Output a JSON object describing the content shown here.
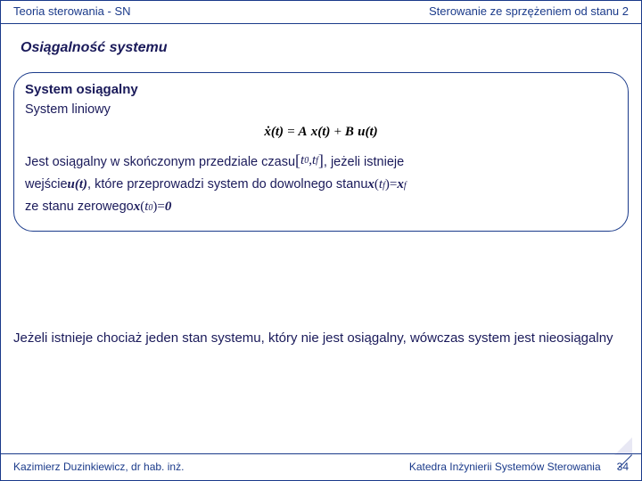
{
  "header": {
    "left": "Teoria sterowania - SN",
    "right": "Sterowanie ze sprzężeniem od stanu 2"
  },
  "title": "Osiągalność systemu",
  "box": {
    "heading": "System osiągalny",
    "sub": "System liniowy",
    "eq_lhs": "ẋ(t)",
    "eq_eq": " = ",
    "eq_A": "A",
    "eq_xt": "x(t)",
    "eq_plus": " + ",
    "eq_B": "B",
    "eq_ut": "u(t)",
    "p1_a": "Jest osiągalny w skończonym przedziale czasu ",
    "p1_int_l": "[",
    "p1_t0": "t",
    "p1_t0s": "0",
    "p1_comma": ", ",
    "p1_tf": "t",
    "p1_tfs": "f",
    "p1_int_r": "]",
    "p1_b": ", jeżeli istnieje",
    "p2_a": "wejście ",
    "p2_u": "u(t)",
    "p2_b": ", które przeprowadzi system do dowolnego stanu ",
    "p2_x": "x",
    "p2_paren_l": "(",
    "p2_tf": "t",
    "p2_tfs": "f",
    "p2_paren_r": ")",
    "p2_eq": " = ",
    "p2_xf": "x",
    "p2_xfs": "f",
    "p3_a": "ze stanu zerowego ",
    "p3_x": "x",
    "p3_paren_l": "(",
    "p3_t0": "t",
    "p3_t0s": "0",
    "p3_paren_r": ")",
    "p3_eq": " = ",
    "p3_zero": "0"
  },
  "bottom": "Jeżeli istnieje chociaż jeden stan systemu, który nie jest osiągalny, wówczas system jest nieosiągalny",
  "footer": {
    "left": "Kazimierz Duzinkiewicz, dr hab. inż.",
    "right": "Katedra Inżynierii Systemów Sterowania",
    "page": "34"
  }
}
